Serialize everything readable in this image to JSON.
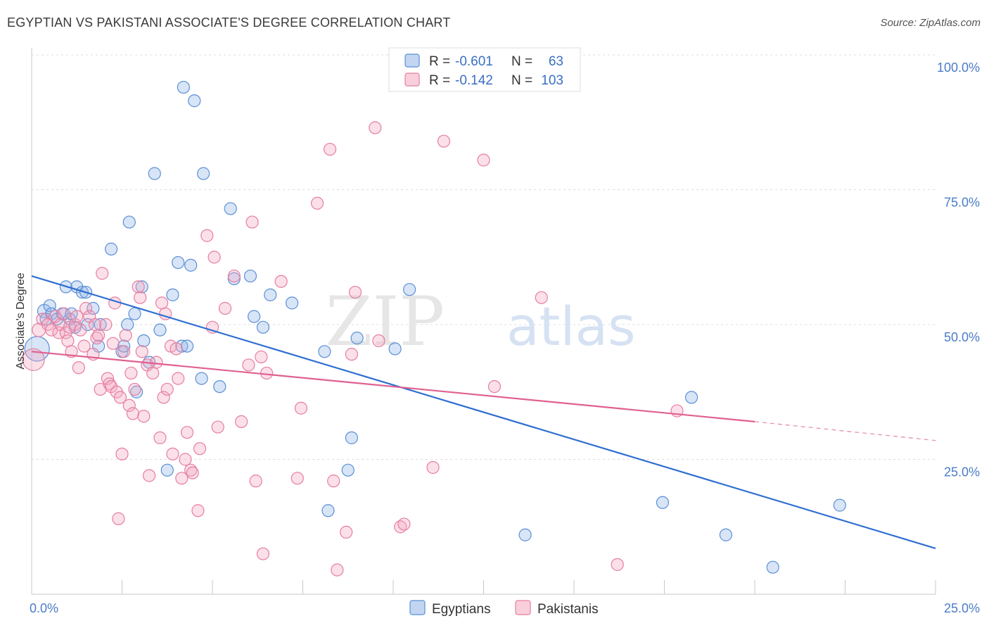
{
  "title": "EGYPTIAN VS PAKISTANI ASSOCIATE'S DEGREE CORRELATION CHART",
  "source": "Source: ZipAtlas.com",
  "watermark": {
    "zip": "ZIP",
    "atlas": "atlas"
  },
  "legend": {
    "r_label": "R = ",
    "n_label": "N = ",
    "rows": [
      {
        "r": "-0.601",
        "n": "63",
        "color": "#8fb4e8"
      },
      {
        "r": "-0.142",
        "n": "103",
        "color": "#f4a7bf"
      }
    ]
  },
  "chart_data": {
    "type": "scatter",
    "ylabel": "Associate's Degree",
    "x_ticks": [
      "0.0%",
      "25.0%"
    ],
    "y_ticks": [
      "25.0%",
      "50.0%",
      "75.0%",
      "100.0%"
    ],
    "xlim": [
      0,
      25
    ],
    "ylim": [
      0,
      100
    ],
    "grid": true,
    "legend_position": "top-center",
    "series": [
      {
        "name": "Egyptians",
        "color": "#8fb4e8",
        "stroke": "#5b8fd6",
        "trend_color": "#2f6fd1",
        "trend": {
          "x1": 0.0,
          "y1": 59.0,
          "x2": 25.0,
          "y2": 8.5
        },
        "points": [
          [
            0.15,
            45.5,
            16
          ],
          [
            0.35,
            52.5,
            8
          ],
          [
            0.4,
            51,
            7
          ],
          [
            0.5,
            53.5,
            7
          ],
          [
            0.55,
            52,
            7
          ],
          [
            0.7,
            51,
            7
          ],
          [
            0.85,
            52,
            7
          ],
          [
            0.95,
            57,
            7
          ],
          [
            1.05,
            51,
            7
          ],
          [
            1.1,
            52,
            7
          ],
          [
            1.2,
            49.5,
            7
          ],
          [
            1.25,
            57,
            7
          ],
          [
            1.4,
            56,
            7
          ],
          [
            1.5,
            56,
            7
          ],
          [
            1.55,
            50,
            7
          ],
          [
            1.7,
            53,
            7
          ],
          [
            1.85,
            46,
            7
          ],
          [
            1.9,
            50,
            7
          ],
          [
            2.2,
            64,
            7
          ],
          [
            2.5,
            45,
            7
          ],
          [
            2.55,
            46,
            7
          ],
          [
            2.65,
            50,
            7
          ],
          [
            2.7,
            69,
            7
          ],
          [
            2.85,
            52,
            7
          ],
          [
            2.9,
            37.5,
            7
          ],
          [
            3.05,
            57,
            7
          ],
          [
            3.1,
            47,
            7
          ],
          [
            3.25,
            43,
            7
          ],
          [
            3.4,
            78,
            7
          ],
          [
            3.55,
            49,
            7
          ],
          [
            3.75,
            23,
            7
          ],
          [
            3.9,
            55.5,
            7
          ],
          [
            4.05,
            61.5,
            7
          ],
          [
            4.15,
            46,
            7
          ],
          [
            4.2,
            94,
            7
          ],
          [
            4.3,
            46,
            7
          ],
          [
            4.4,
            61,
            7
          ],
          [
            4.5,
            91.5,
            7
          ],
          [
            4.7,
            40,
            7
          ],
          [
            4.75,
            78,
            7
          ],
          [
            5.2,
            38.5,
            7
          ],
          [
            5.5,
            71.5,
            7
          ],
          [
            5.6,
            58.5,
            7
          ],
          [
            6.05,
            59,
            7
          ],
          [
            6.15,
            51.5,
            7
          ],
          [
            6.4,
            49.5,
            7
          ],
          [
            6.6,
            55.5,
            7
          ],
          [
            7.2,
            54,
            7
          ],
          [
            8.1,
            45,
            7
          ],
          [
            8.2,
            15.5,
            7
          ],
          [
            8.75,
            23,
            7
          ],
          [
            8.85,
            29,
            7
          ],
          [
            9.0,
            47.5,
            7
          ],
          [
            10.05,
            45.5,
            7
          ],
          [
            10.45,
            56.5,
            7
          ],
          [
            13.65,
            11,
            7
          ],
          [
            17.45,
            17,
            7
          ],
          [
            18.25,
            36.5,
            7
          ],
          [
            19.2,
            11,
            7
          ],
          [
            20.5,
            5,
            7
          ],
          [
            22.35,
            16.5,
            7
          ]
        ]
      },
      {
        "name": "Pakistanis",
        "color": "#f4a7bf",
        "stroke": "#e67ea0",
        "trend_color": "#e06090",
        "trend": {
          "x1": 0.0,
          "y1": 45.0,
          "x2": 20.0,
          "y2": 32.0
        },
        "trend_ext": {
          "x1": 20.0,
          "y1": 32.0,
          "x2": 25.0,
          "y2": 28.5
        },
        "points": [
          [
            0.05,
            43.5,
            14
          ],
          [
            0.2,
            49,
            8
          ],
          [
            0.3,
            51,
            7
          ],
          [
            0.45,
            50,
            7
          ],
          [
            0.55,
            49,
            7
          ],
          [
            0.65,
            51.5,
            7
          ],
          [
            0.75,
            48.5,
            7
          ],
          [
            0.8,
            50,
            7
          ],
          [
            0.9,
            52,
            7
          ],
          [
            0.95,
            48.5,
            7
          ],
          [
            1.0,
            47,
            7
          ],
          [
            1.05,
            49.5,
            7
          ],
          [
            1.1,
            45,
            7
          ],
          [
            1.2,
            50,
            7
          ],
          [
            1.25,
            51.5,
            7
          ],
          [
            1.3,
            42,
            7
          ],
          [
            1.35,
            49,
            7
          ],
          [
            1.45,
            46,
            7
          ],
          [
            1.5,
            53,
            7
          ],
          [
            1.6,
            51.5,
            7
          ],
          [
            1.7,
            44.5,
            7
          ],
          [
            1.75,
            50,
            7
          ],
          [
            1.8,
            47.5,
            7
          ],
          [
            1.85,
            48,
            7
          ],
          [
            1.9,
            38,
            7
          ],
          [
            1.95,
            59.5,
            7
          ],
          [
            2.05,
            50,
            7
          ],
          [
            2.1,
            40,
            7
          ],
          [
            2.15,
            39,
            7
          ],
          [
            2.2,
            38.5,
            7
          ],
          [
            2.25,
            46.5,
            7
          ],
          [
            2.3,
            54,
            7
          ],
          [
            2.35,
            37.5,
            7
          ],
          [
            2.4,
            14,
            7
          ],
          [
            2.45,
            36.5,
            7
          ],
          [
            2.5,
            26,
            7
          ],
          [
            2.55,
            45,
            7
          ],
          [
            2.6,
            48,
            7
          ],
          [
            2.7,
            35,
            7
          ],
          [
            2.75,
            41,
            7
          ],
          [
            2.8,
            33.5,
            7
          ],
          [
            2.85,
            38,
            7
          ],
          [
            2.95,
            57,
            7
          ],
          [
            3.0,
            55,
            7
          ],
          [
            3.05,
            45,
            7
          ],
          [
            3.1,
            33,
            7
          ],
          [
            3.2,
            42.5,
            7
          ],
          [
            3.25,
            22,
            7
          ],
          [
            3.35,
            41,
            7
          ],
          [
            3.45,
            43,
            7
          ],
          [
            3.55,
            29,
            7
          ],
          [
            3.6,
            54,
            7
          ],
          [
            3.65,
            36.5,
            7
          ],
          [
            3.7,
            52,
            7
          ],
          [
            3.75,
            38,
            7
          ],
          [
            3.85,
            46,
            7
          ],
          [
            3.9,
            26,
            7
          ],
          [
            4.0,
            45.5,
            7
          ],
          [
            4.05,
            40,
            7
          ],
          [
            4.15,
            21.5,
            7
          ],
          [
            4.25,
            25,
            7
          ],
          [
            4.3,
            30,
            7
          ],
          [
            4.4,
            23,
            7
          ],
          [
            4.45,
            22.5,
            7
          ],
          [
            4.6,
            15.5,
            7
          ],
          [
            4.65,
            27,
            7
          ],
          [
            4.85,
            66.5,
            7
          ],
          [
            5.0,
            49.5,
            7
          ],
          [
            5.05,
            62.5,
            7
          ],
          [
            5.15,
            31,
            7
          ],
          [
            5.35,
            53,
            7
          ],
          [
            5.6,
            59,
            7
          ],
          [
            5.8,
            32,
            7
          ],
          [
            6.0,
            42.5,
            7
          ],
          [
            6.1,
            69,
            7
          ],
          [
            6.2,
            21,
            7
          ],
          [
            6.35,
            44,
            7
          ],
          [
            6.4,
            7.5,
            7
          ],
          [
            6.5,
            41,
            7
          ],
          [
            6.9,
            58,
            7
          ],
          [
            7.35,
            21.5,
            7
          ],
          [
            7.45,
            34.5,
            7
          ],
          [
            7.9,
            72.5,
            7
          ],
          [
            8.25,
            82.5,
            7
          ],
          [
            8.35,
            21,
            7
          ],
          [
            8.45,
            4.5,
            7
          ],
          [
            8.7,
            11.5,
            7
          ],
          [
            8.85,
            44.5,
            7
          ],
          [
            8.95,
            56,
            7
          ],
          [
            9.5,
            86.5,
            7
          ],
          [
            9.6,
            47,
            7
          ],
          [
            10.2,
            12.5,
            7
          ],
          [
            10.3,
            13,
            7
          ],
          [
            11.1,
            23.5,
            7
          ],
          [
            11.4,
            84,
            7
          ],
          [
            12.5,
            80.5,
            7
          ],
          [
            12.8,
            38.5,
            7
          ],
          [
            14.1,
            55,
            7
          ],
          [
            16.2,
            5.5,
            7
          ],
          [
            17.85,
            34,
            7
          ]
        ]
      }
    ]
  }
}
